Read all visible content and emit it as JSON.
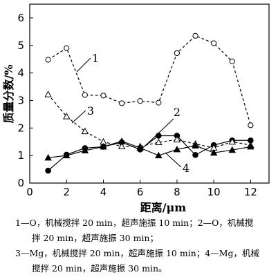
{
  "chart_data": {
    "type": "line",
    "xlabel": "距离/μm",
    "ylabel": "质量分数/%",
    "xlim": [
      0,
      13
    ],
    "ylim": [
      0,
      6.5
    ],
    "xticks": [
      0,
      2,
      4,
      6,
      8,
      10,
      12
    ],
    "yticks": [
      0,
      1,
      2,
      3,
      4,
      5,
      6
    ],
    "grid": false,
    "series": [
      {
        "name": "1",
        "marker": "open-circle",
        "line": "dashed",
        "x": [
          1,
          2,
          3,
          4,
          5,
          6,
          7,
          8,
          9,
          10,
          11,
          12
        ],
        "y": [
          4.48,
          4.9,
          3.2,
          3.18,
          2.9,
          2.98,
          2.92,
          4.72,
          5.35,
          5.08,
          4.42,
          2.1
        ]
      },
      {
        "name": "2",
        "marker": "filled-circle",
        "line": "solid",
        "x": [
          1,
          2,
          3,
          4,
          5,
          6,
          7,
          8,
          9,
          10,
          11,
          12
        ],
        "y": [
          0.45,
          1.03,
          1.27,
          1.32,
          1.48,
          1.22,
          1.72,
          1.72,
          1.02,
          1.38,
          1.55,
          1.55
        ]
      },
      {
        "name": "3",
        "marker": "open-triangle",
        "line": "dashed",
        "x": [
          1,
          2,
          3,
          4,
          5,
          6,
          7,
          8,
          9,
          10,
          11,
          12
        ],
        "y": [
          3.22,
          2.42,
          1.88,
          1.5,
          1.33,
          1.33,
          1.48,
          1.58,
          1.42,
          1.28,
          1.5,
          1.38
        ]
      },
      {
        "name": "4",
        "marker": "filled-triangle",
        "line": "solid",
        "x": [
          1,
          2,
          3,
          4,
          5,
          6,
          7,
          8,
          9,
          10,
          11,
          12
        ],
        "y": [
          0.92,
          1.0,
          1.18,
          1.32,
          1.52,
          1.28,
          1.0,
          1.22,
          1.36,
          1.1,
          1.2,
          1.32
        ]
      }
    ]
  },
  "caption": {
    "line1": "1—O，机械搅拌 20 min，超声施振 10 min；2—O，机械搅",
    "line2": "拌 20 min，超声施振 30 min；",
    "line3": "3—Mg，机械搅拌 20 min，超声施振 10 min；4—Mg，机械",
    "line4": "搅拌 20 min，超声施振 30 min。"
  }
}
